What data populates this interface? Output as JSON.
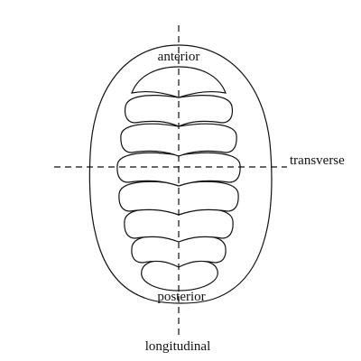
{
  "labels": {
    "anterior": "anterior",
    "posterior": "posterior",
    "transverse": "transverse",
    "longitudinal": "longitudinal"
  },
  "colors": {
    "ink": "#111111",
    "background": "#ffffff"
  }
}
